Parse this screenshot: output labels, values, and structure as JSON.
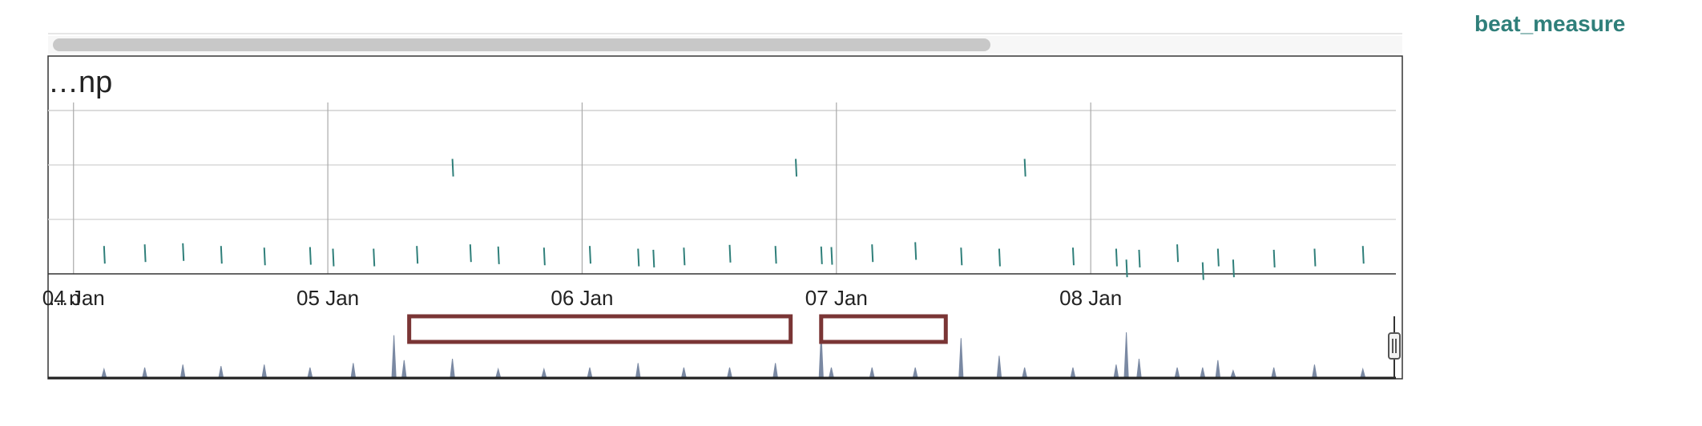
{
  "title": "…np",
  "legend": {
    "label": "beat_measure",
    "color": "#2f7f7a"
  },
  "colors": {
    "series": "#2f7f7a",
    "navigator_series": "#7a89a3",
    "grid": "#d8d8d8",
    "axis": "#333333",
    "scrollbar": "#c8c8c8",
    "annotation_box": "#7a3535"
  },
  "chart_data": {
    "type": "line",
    "title": "",
    "xlabel": "",
    "ylabel": "",
    "x_ticks": [
      "…n",
      "04 Jan",
      "05 Jan",
      "06 Jan",
      "07 Jan",
      "08 Jan"
    ],
    "x_tick_values": [
      2.0,
      3.0,
      4.0,
      5.0,
      5.9999,
      7.0
    ],
    "xlim": [
      2.9,
      8.2
    ],
    "ylim": [
      0,
      3
    ],
    "grid": true,
    "legend_position": "top-right",
    "series": [
      {
        "name": "beat_measure",
        "x": [
          3.12,
          3.28,
          3.43,
          3.58,
          3.75,
          3.93,
          4.02,
          4.18,
          4.35,
          4.49,
          4.56,
          4.67,
          4.85,
          5.03,
          5.22,
          5.28,
          5.4,
          5.58,
          5.76,
          5.84,
          5.94,
          5.98,
          6.14,
          6.31,
          6.49,
          6.64,
          6.74,
          6.93,
          7.1,
          7.14,
          7.19,
          7.34,
          7.44,
          7.5,
          7.56,
          7.72,
          7.88,
          8.07
        ],
        "y": [
          0.35,
          0.38,
          0.4,
          0.35,
          0.32,
          0.33,
          0.3,
          0.3,
          0.35,
          1.95,
          0.38,
          0.34,
          0.32,
          0.35,
          0.3,
          0.28,
          0.32,
          0.37,
          0.35,
          1.95,
          0.34,
          0.33,
          0.38,
          0.42,
          0.32,
          0.3,
          1.95,
          0.32,
          0.3,
          0.1,
          0.28,
          0.38,
          0.05,
          0.3,
          0.1,
          0.28,
          0.3,
          0.35
        ]
      }
    ],
    "navigator_series": {
      "x": [
        3.12,
        3.28,
        3.43,
        3.58,
        3.75,
        3.93,
        4.1,
        4.26,
        4.3,
        4.49,
        4.67,
        4.85,
        5.03,
        5.22,
        5.4,
        5.58,
        5.76,
        5.94,
        5.98,
        6.14,
        6.31,
        6.49,
        6.64,
        6.74,
        6.93,
        7.1,
        7.14,
        7.19,
        7.34,
        7.44,
        7.5,
        7.56,
        7.72,
        7.88,
        8.07
      ],
      "y": [
        0.25,
        0.3,
        0.4,
        0.35,
        0.4,
        0.3,
        0.45,
        1.4,
        0.55,
        0.6,
        0.25,
        0.25,
        0.3,
        0.45,
        0.3,
        0.3,
        0.45,
        1.5,
        0.3,
        0.3,
        0.3,
        1.3,
        0.7,
        0.3,
        0.3,
        0.4,
        1.5,
        0.6,
        0.3,
        0.3,
        0.55,
        0.2,
        0.3,
        0.4,
        0.25
      ]
    },
    "annotations": [
      {
        "type": "box",
        "x_start": 4.32,
        "x_end": 5.82
      },
      {
        "type": "box",
        "x_start": 5.94,
        "x_end": 6.43
      }
    ]
  }
}
